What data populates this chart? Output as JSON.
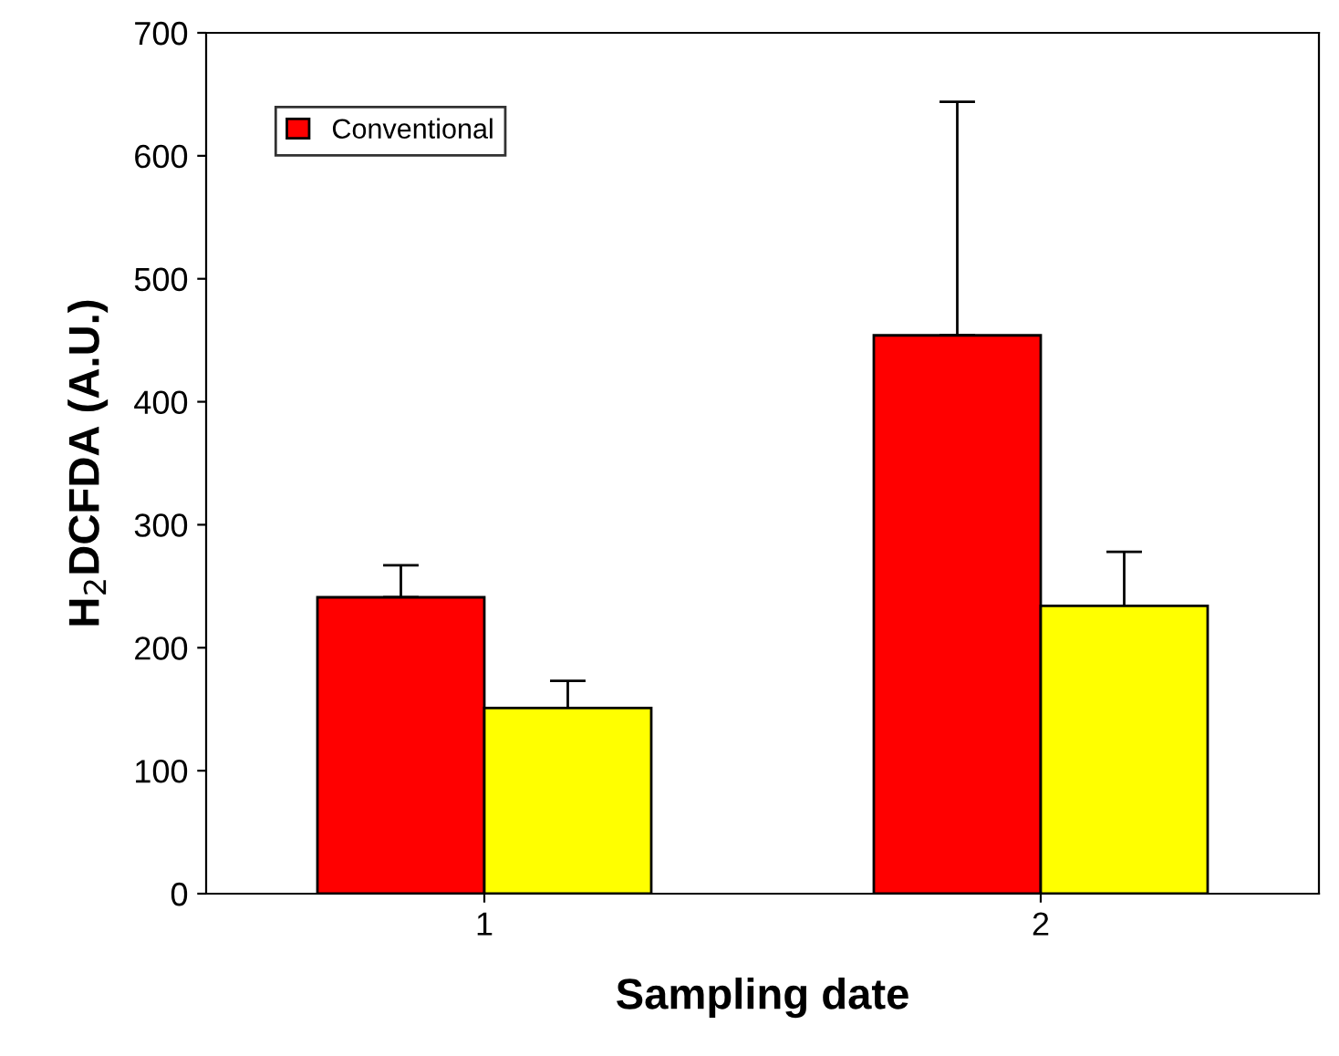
{
  "chart_data": {
    "type": "bar",
    "xlabel": "Sampling date",
    "ylabel": "H$_{2}$DCFDA (A.U.)",
    "categories": [
      "1",
      "2"
    ],
    "series": [
      {
        "name": "Conventional",
        "color": "#ff0000",
        "values": [
          241,
          454
        ],
        "errors": [
          [
            241,
            267
          ],
          [
            454,
            644
          ]
        ]
      },
      {
        "color": "#ffff00",
        "values": [
          151,
          234
        ],
        "errors": [
          [
            151,
            173
          ],
          [
            234,
            278
          ]
        ]
      }
    ],
    "ylim": [
      0,
      700
    ],
    "yticks": [
      0,
      100,
      200,
      300,
      400,
      500,
      600,
      700
    ],
    "grid": false,
    "legend": "top left"
  }
}
